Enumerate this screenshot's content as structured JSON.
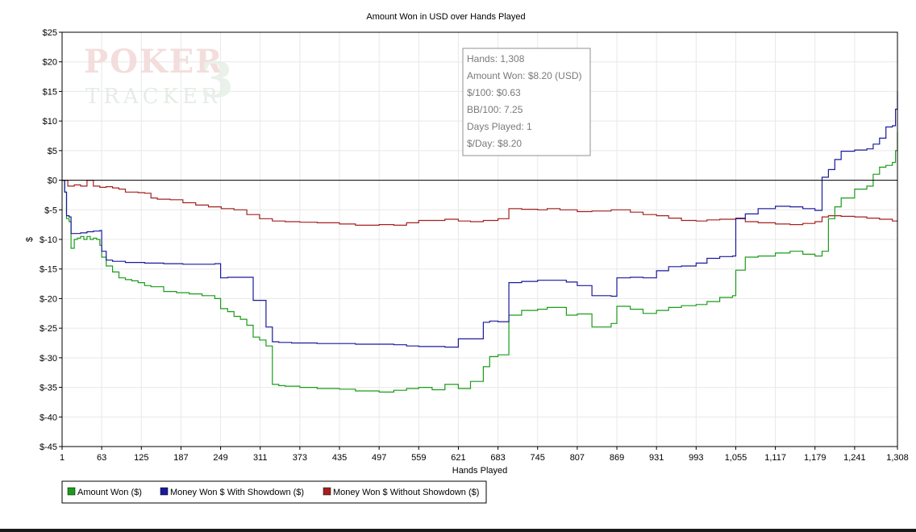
{
  "chart_data": {
    "type": "line",
    "title": "Amount Won in USD over Hands Played",
    "xlabel": "Hands Played",
    "ylabel": "$",
    "xlim": [
      1,
      1308
    ],
    "ylim": [
      -45,
      25
    ],
    "x_ticks": [
      1,
      63,
      125,
      187,
      249,
      311,
      373,
      435,
      497,
      559,
      621,
      683,
      745,
      807,
      869,
      931,
      993,
      1055,
      1117,
      1179,
      1241,
      1308
    ],
    "x_tick_labels": [
      "1",
      "63",
      "125",
      "187",
      "249",
      "311",
      "373",
      "435",
      "497",
      "559",
      "621",
      "683",
      "745",
      "807",
      "869",
      "931",
      "993",
      "1,055",
      "1,117",
      "1,179",
      "1,241",
      "1,308"
    ],
    "y_ticks": [
      25,
      20,
      15,
      10,
      5,
      0,
      -5,
      -10,
      -15,
      -20,
      -25,
      -30,
      -35,
      -40,
      -45
    ],
    "y_tick_labels": [
      "$25",
      "$20",
      "$15",
      "$10",
      "$5",
      "$0",
      "$-5",
      "$-10",
      "$-15",
      "$-20",
      "$-25",
      "$-30",
      "$-35",
      "$-40",
      "$-45"
    ],
    "grid": true,
    "legend_position": "bottom-left",
    "series": [
      {
        "name": "Amount Won ($)",
        "color": "#1a9c1a",
        "x": [
          1,
          5,
          8,
          12,
          15,
          20,
          25,
          30,
          35,
          40,
          45,
          50,
          55,
          60,
          63,
          70,
          80,
          90,
          100,
          110,
          120,
          130,
          140,
          160,
          180,
          200,
          220,
          240,
          249,
          260,
          270,
          280,
          290,
          300,
          310,
          320,
          330,
          340,
          350,
          373,
          400,
          435,
          460,
          497,
          520,
          540,
          559,
          580,
          600,
          621,
          640,
          660,
          670,
          683,
          700,
          720,
          745,
          760,
          790,
          807,
          830,
          860,
          869,
          890,
          910,
          931,
          950,
          970,
          993,
          1010,
          1030,
          1050,
          1055,
          1070,
          1090,
          1117,
          1140,
          1160,
          1179,
          1190,
          1200,
          1210,
          1220,
          1241,
          1260,
          1270,
          1280,
          1290,
          1300,
          1305,
          1308
        ],
        "y": [
          0,
          -2,
          -6.5,
          -7,
          -11.5,
          -10,
          -9.8,
          -9.5,
          -10,
          -9.5,
          -10,
          -9.8,
          -10,
          -11,
          -13,
          -14.5,
          -15.5,
          -16.5,
          -16.8,
          -17,
          -17.3,
          -17.8,
          -18,
          -18.8,
          -19,
          -19.2,
          -19.5,
          -20,
          -21.7,
          -22.2,
          -23,
          -23.5,
          -24.5,
          -26.5,
          -27,
          -28,
          -34.5,
          -34.7,
          -34.8,
          -35,
          -35.2,
          -35.3,
          -35.6,
          -35.8,
          -35.5,
          -35.2,
          -35,
          -35.4,
          -34.5,
          -35.2,
          -34,
          -31.5,
          -29.8,
          -29.5,
          -22.8,
          -22,
          -21.8,
          -21.5,
          -22.8,
          -22.6,
          -24.8,
          -24.2,
          -21.3,
          -21.8,
          -22.5,
          -22,
          -21.5,
          -21.2,
          -21,
          -20.5,
          -19.8,
          -19.5,
          -15.2,
          -13,
          -12.8,
          -12.3,
          -12,
          -12.5,
          -12.8,
          -12,
          -6.5,
          -4.5,
          -3,
          -1.5,
          -1,
          1,
          2.2,
          2.5,
          3,
          5,
          8.2
        ]
      },
      {
        "name": "Money Won $ With Showdown ($)",
        "color": "#1a1a9c",
        "x": [
          1,
          5,
          8,
          12,
          15,
          20,
          30,
          40,
          50,
          60,
          63,
          70,
          80,
          100,
          130,
          160,
          190,
          220,
          240,
          249,
          260,
          280,
          300,
          310,
          320,
          330,
          340,
          360,
          373,
          400,
          435,
          460,
          497,
          520,
          540,
          559,
          580,
          600,
          621,
          640,
          660,
          670,
          683,
          700,
          720,
          745,
          760,
          790,
          807,
          830,
          860,
          869,
          890,
          910,
          931,
          950,
          970,
          993,
          1010,
          1030,
          1050,
          1055,
          1070,
          1090,
          1117,
          1140,
          1160,
          1179,
          1190,
          1200,
          1210,
          1220,
          1241,
          1260,
          1270,
          1280,
          1290,
          1300,
          1305,
          1308
        ],
        "y": [
          0,
          -2,
          -6,
          -6.2,
          -9,
          -9,
          -8.9,
          -8.7,
          -8.6,
          -8.5,
          -12,
          -13.5,
          -13.7,
          -13.9,
          -14,
          -14.1,
          -14.2,
          -14.2,
          -14.1,
          -16.5,
          -16.4,
          -16.4,
          -20.3,
          -20.3,
          -24.8,
          -27.3,
          -27.4,
          -27.5,
          -27.5,
          -27.6,
          -27.6,
          -27.7,
          -27.7,
          -27.8,
          -28,
          -28.1,
          -28.1,
          -28.2,
          -26.8,
          -26.8,
          -24,
          -23.8,
          -23.9,
          -17.3,
          -17.1,
          -16.9,
          -16.9,
          -17.2,
          -17.8,
          -19.5,
          -19.6,
          -16.5,
          -16.4,
          -16.5,
          -15.3,
          -14.6,
          -14.5,
          -14,
          -13.2,
          -12.9,
          -12.8,
          -6.5,
          -5.7,
          -4.8,
          -4.4,
          -4.5,
          -4.8,
          -5.1,
          0.5,
          1.8,
          3.5,
          4.9,
          5.1,
          5.3,
          6.1,
          7.1,
          9,
          9.2,
          12,
          15
        ]
      },
      {
        "name": "Money Won $ Without Showdown ($)",
        "color": "#a52020",
        "x": [
          1,
          10,
          20,
          30,
          40,
          50,
          60,
          70,
          80,
          90,
          100,
          110,
          120,
          130,
          140,
          150,
          170,
          190,
          210,
          230,
          250,
          270,
          290,
          310,
          330,
          350,
          373,
          400,
          435,
          460,
          497,
          520,
          540,
          559,
          580,
          600,
          621,
          640,
          660,
          683,
          700,
          720,
          745,
          760,
          780,
          807,
          830,
          860,
          869,
          890,
          910,
          931,
          950,
          970,
          993,
          1010,
          1030,
          1055,
          1070,
          1090,
          1117,
          1140,
          1160,
          1179,
          1190,
          1200,
          1220,
          1241,
          1260,
          1280,
          1300,
          1308
        ],
        "y": [
          0,
          -1,
          -0.8,
          -1,
          0,
          -1,
          -1.2,
          -1.1,
          -1.3,
          -1.5,
          -2,
          -2,
          -2.1,
          -2.2,
          -3,
          -3.2,
          -3.3,
          -3.8,
          -4.2,
          -4.5,
          -4.8,
          -5,
          -5.8,
          -6.5,
          -6.9,
          -7,
          -7.1,
          -7.2,
          -7.4,
          -7.6,
          -7.5,
          -7.6,
          -7.2,
          -6.8,
          -6.8,
          -6.6,
          -6.9,
          -7,
          -6.8,
          -6.5,
          -4.8,
          -4.9,
          -5,
          -4.8,
          -5,
          -5.3,
          -5.2,
          -5,
          -5,
          -5.4,
          -5.8,
          -6,
          -6.4,
          -6.8,
          -6.9,
          -6.7,
          -6.6,
          -6.4,
          -7,
          -7.2,
          -7.4,
          -7.5,
          -7.3,
          -7,
          -6.2,
          -6,
          -6.1,
          -6.2,
          -6.4,
          -6.6,
          -6.9,
          -7
        ]
      }
    ]
  },
  "tooltip": {
    "lines": [
      "Hands: 1,308",
      "Amount Won: $8.20 (USD)",
      "$/100: $0.63",
      "BB/100: 7.25",
      "Days Played: 1",
      "$/Day: $8.20"
    ]
  },
  "watermark": {
    "text": "POKERTRACKER3"
  }
}
